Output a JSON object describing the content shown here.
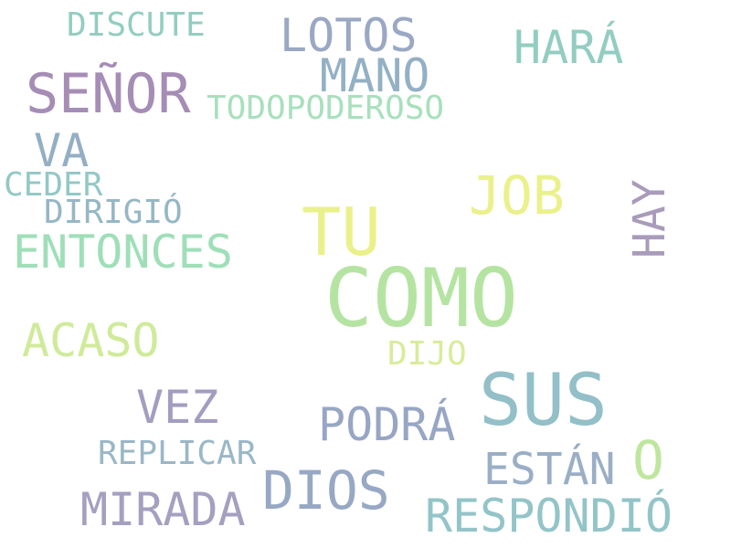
{
  "words": {
    "como": {
      "text": "COMO",
      "color": "#b5e4a2"
    },
    "sus": {
      "text": "SUS",
      "color": "#93bfc8"
    },
    "tu": {
      "text": "TU",
      "color": "#eaf18a"
    },
    "senor": {
      "text": "SEÑOR",
      "color": "#a68db5"
    },
    "dios": {
      "text": "DIOS",
      "color": "#97a8c4"
    },
    "job": {
      "text": "JOB",
      "color": "#eaf18a"
    },
    "entonces": {
      "text": "ENTONCES",
      "color": "#9fdfb8"
    },
    "mirada": {
      "text": "MIRADA",
      "color": "#a59fc0"
    },
    "respondio": {
      "text": "RESPONDIÓ",
      "color": "#93c4c8"
    },
    "lotos": {
      "text": "LOTOS",
      "color": "#9aa8c3"
    },
    "hara": {
      "text": "HARÁ",
      "color": "#93cdc1"
    },
    "mano": {
      "text": "MANO",
      "color": "#93b0c4"
    },
    "estan": {
      "text": "ESTÁN",
      "color": "#9aaec6"
    },
    "podra": {
      "text": "PODRÁ",
      "color": "#97a6c4"
    },
    "acaso": {
      "text": "ACASO",
      "color": "#cfeb9a"
    },
    "vez": {
      "text": "VEZ",
      "color": "#a39ec0"
    },
    "hay": {
      "text": "HAY",
      "color": "#a99bbb"
    },
    "va": {
      "text": "VA",
      "color": "#93afc4"
    },
    "o": {
      "text": "O",
      "color": "#bfe69e"
    },
    "todopoderoso": {
      "text": "TODOPODEROSO",
      "color": "#a8e0bc"
    },
    "discute": {
      "text": "DISCUTE",
      "color": "#93cdc1"
    },
    "replicar": {
      "text": "REPLICAR",
      "color": "#9ab7c7"
    },
    "ceder": {
      "text": "CEDER",
      "color": "#93c8c6"
    },
    "dirigio": {
      "text": "DIRIGIÓ",
      "color": "#96b7c5"
    },
    "dijo": {
      "text": "DIJO",
      "color": "#d8ec9b"
    }
  }
}
